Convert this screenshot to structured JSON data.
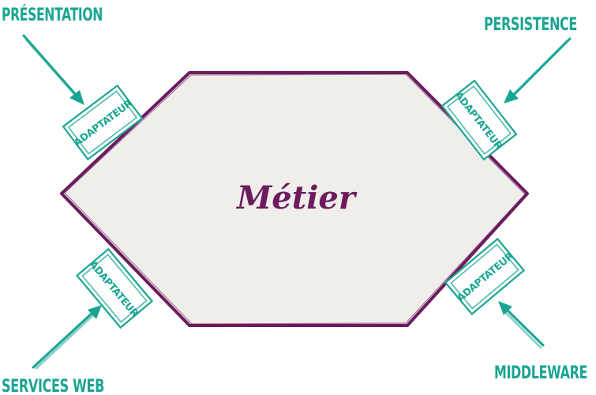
{
  "core": {
    "label": "Métier"
  },
  "layers": {
    "presentation": "PRÉSENTATION",
    "persistence": "PERSISTENCE",
    "services_web": "SERVICES WEB",
    "middleware": "MIDDLEWARE"
  },
  "adapters": [
    {
      "label": "ADAPTATEUR"
    },
    {
      "label": "ADAPTATEUR"
    },
    {
      "label": "ADAPTATEUR"
    },
    {
      "label": "ADAPTATEUR"
    }
  ],
  "colors": {
    "teal": "#1aa592",
    "purple": "#6c1c5e",
    "hexagon_fill": "#efeeeb"
  }
}
